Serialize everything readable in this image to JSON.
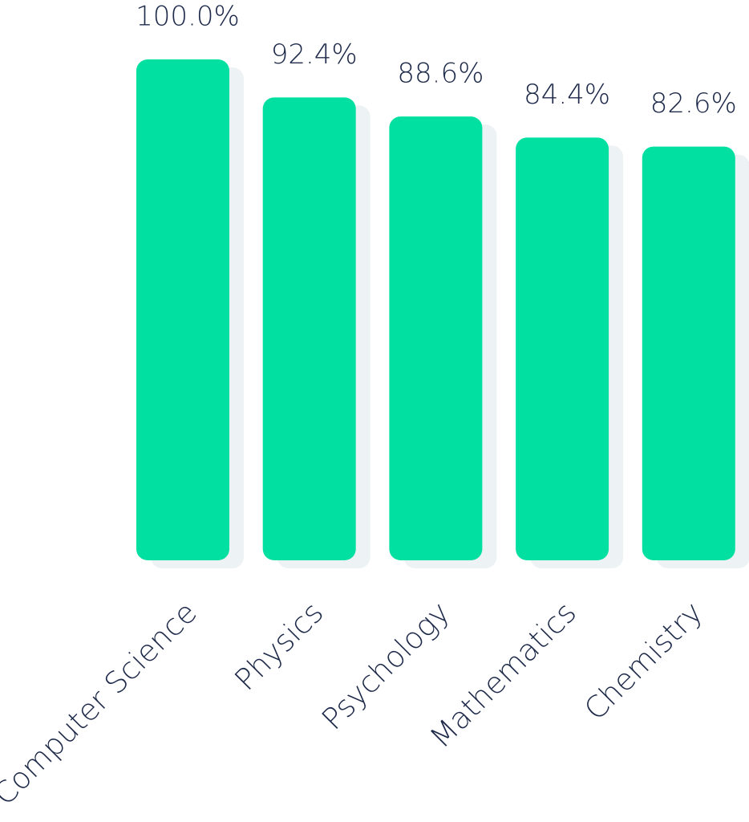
{
  "chart_data": {
    "type": "bar",
    "categories": [
      "Computer Science",
      "Physics",
      "Psychology",
      "Mathematics",
      "Chemistry"
    ],
    "values": [
      100,
      92.4,
      88.6,
      84.4,
      82.6
    ],
    "value_labels": [
      "100.0%",
      "92.4%",
      "88.6%",
      "84.4%",
      "82.6%"
    ],
    "color": "#02e0a1",
    "ylim": [
      0,
      100
    ]
  }
}
